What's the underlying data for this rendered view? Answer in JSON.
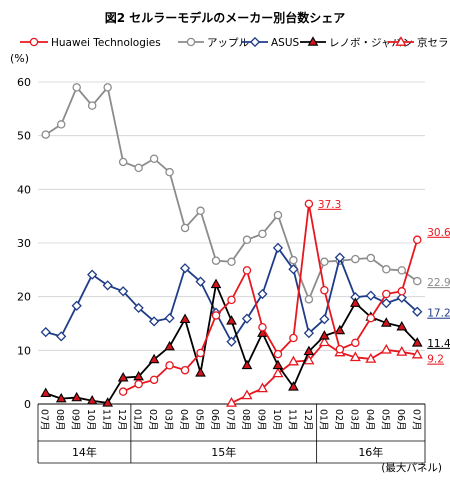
{
  "chart_data": {
    "type": "line",
    "title": "図2 セルラーモデルのメーカー別台数シェア",
    "ylabel": "(%)",
    "note": "(最大パネル)",
    "ylim": [
      0,
      65
    ],
    "yticks": [
      0,
      10,
      20,
      30,
      40,
      50,
      60
    ],
    "months": [
      "07月",
      "08月",
      "09月",
      "10月",
      "11月",
      "12月",
      "01月",
      "02月",
      "03月",
      "04月",
      "05月",
      "06月",
      "07月",
      "08月",
      "09月",
      "10月",
      "11月",
      "12月",
      "01月",
      "02月",
      "03月",
      "04月",
      "05月",
      "06月",
      "07月"
    ],
    "years": [
      {
        "label": "14年",
        "start": 0,
        "end": 5
      },
      {
        "label": "15年",
        "start": 6,
        "end": 17
      },
      {
        "label": "16年",
        "start": 18,
        "end": 24
      }
    ],
    "series": [
      {
        "name": "Huawei Technologies",
        "color": "#e8171f",
        "marker": "circle",
        "values": [
          null,
          null,
          null,
          null,
          null,
          2.3,
          3.7,
          4.5,
          7.2,
          6.3,
          9.5,
          16.5,
          19.4,
          24.9,
          14.3,
          9.3,
          12.3,
          37.3,
          21.2,
          10.2,
          11.4,
          16.0,
          20.5,
          21.0,
          30.6
        ],
        "end_label": "30.6",
        "peak_label": "37.3"
      },
      {
        "name": "アップル",
        "color": "#8c8c8c",
        "marker": "circle",
        "values": [
          50.2,
          52.1,
          59.0,
          55.6,
          59.0,
          45.1,
          44.0,
          45.7,
          43.2,
          32.8,
          36.0,
          26.7,
          26.5,
          30.6,
          31.7,
          35.2,
          26.8,
          19.5,
          26.5,
          26.7,
          27.0,
          27.2,
          25.1,
          24.9,
          22.9
        ],
        "end_label": "22.9"
      },
      {
        "name": "ASUS",
        "color": "#1f3c88",
        "marker": "diamond",
        "values": [
          13.4,
          12.6,
          18.3,
          24.1,
          22.1,
          21.0,
          17.9,
          15.4,
          16.0,
          25.3,
          22.8,
          17.0,
          11.6,
          15.9,
          20.5,
          29.1,
          25.1,
          13.2,
          15.8,
          27.3,
          19.9,
          20.2,
          18.8,
          19.8,
          17.2
        ],
        "end_label": "17.2"
      },
      {
        "name": "レノボ・ジャパン",
        "color": "#000000",
        "marker": "triangle-filled",
        "values": [
          2.0,
          1.0,
          1.2,
          0.6,
          0.2,
          4.9,
          5.1,
          8.3,
          10.7,
          15.8,
          5.8,
          22.3,
          15.5,
          7.2,
          13.2,
          7.2,
          3.2,
          9.8,
          12.7,
          13.7,
          18.8,
          16.2,
          15.1,
          14.4,
          11.4
        ],
        "end_label": "11.4"
      },
      {
        "name": "京セラ",
        "color": "#e8171f",
        "marker": "triangle-open",
        "values": [
          null,
          null,
          null,
          null,
          null,
          null,
          null,
          null,
          null,
          null,
          null,
          null,
          0.2,
          1.6,
          2.9,
          5.7,
          7.9,
          8.1,
          11.5,
          9.6,
          8.7,
          8.4,
          10.1,
          9.7,
          9.2
        ],
        "end_label": "9.2"
      }
    ]
  }
}
